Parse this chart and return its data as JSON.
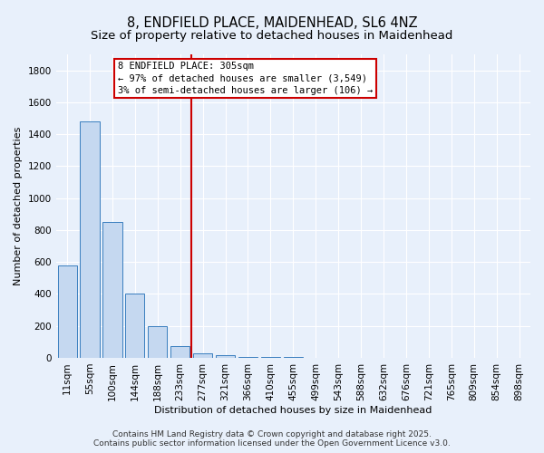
{
  "title_line1": "8, ENDFIELD PLACE, MAIDENHEAD, SL6 4NZ",
  "title_line2": "Size of property relative to detached houses in Maidenhead",
  "xlabel": "Distribution of detached houses by size in Maidenhead",
  "ylabel": "Number of detached properties",
  "categories": [
    "11sqm",
    "55sqm",
    "100sqm",
    "144sqm",
    "188sqm",
    "233sqm",
    "277sqm",
    "321sqm",
    "366sqm",
    "410sqm",
    "455sqm",
    "499sqm",
    "543sqm",
    "588sqm",
    "632sqm",
    "676sqm",
    "721sqm",
    "765sqm",
    "809sqm",
    "854sqm",
    "898sqm"
  ],
  "values": [
    580,
    1480,
    850,
    400,
    200,
    75,
    30,
    15,
    8,
    5,
    3,
    2,
    1,
    1,
    1,
    0,
    0,
    0,
    0,
    0,
    0
  ],
  "bar_color": "#c5d8f0",
  "bar_edge_color": "#3a7ebf",
  "property_line_x": 5.5,
  "property_line_color": "#cc0000",
  "annotation_line1": "8 ENDFIELD PLACE: 305sqm",
  "annotation_line2": "← 97% of detached houses are smaller (3,549)",
  "annotation_line3": "3% of semi-detached houses are larger (106) →",
  "annotation_box_color": "#ffffff",
  "annotation_box_edge_color": "#cc0000",
  "ylim": [
    0,
    1900
  ],
  "yticks": [
    0,
    200,
    400,
    600,
    800,
    1000,
    1200,
    1400,
    1600,
    1800
  ],
  "footer_line1": "Contains HM Land Registry data © Crown copyright and database right 2025.",
  "footer_line2": "Contains public sector information licensed under the Open Government Licence v3.0.",
  "background_color": "#e8f0fb",
  "grid_color": "#ffffff",
  "title_fontsize": 10.5,
  "subtitle_fontsize": 9.5,
  "axis_label_fontsize": 8,
  "tick_fontsize": 7.5,
  "annotation_fontsize": 7.5,
  "footer_fontsize": 6.5
}
